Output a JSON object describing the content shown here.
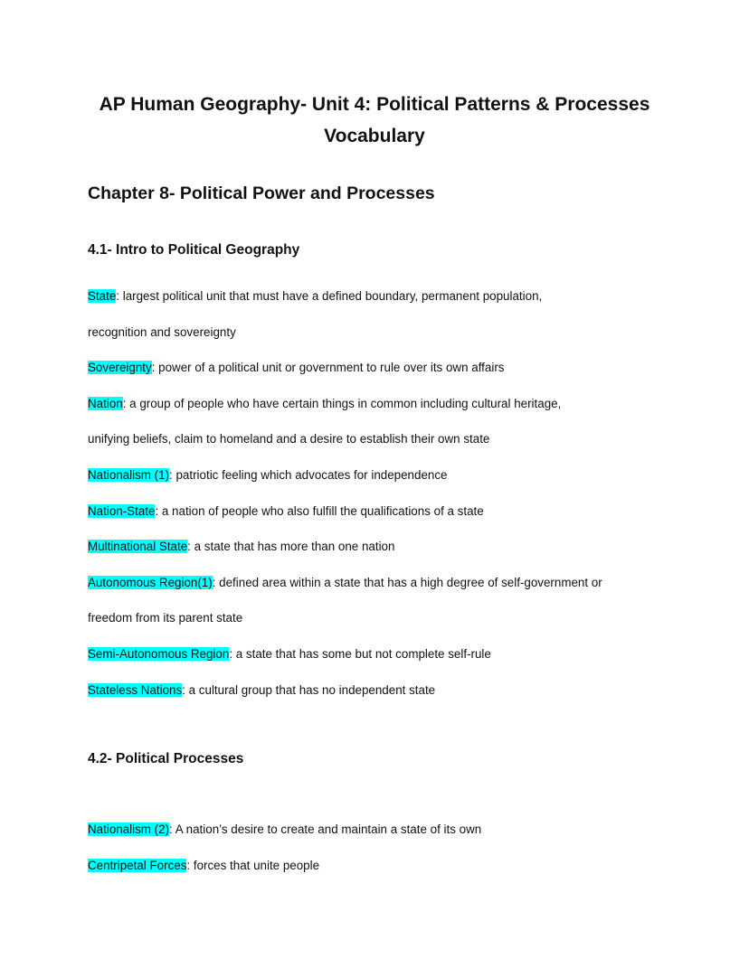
{
  "title": {
    "line1": "AP Human Geography- Unit 4: Political Patterns & Processes",
    "line2": "Vocabulary"
  },
  "chapter": "Chapter 8- Political Power and Processes",
  "highlight_color": "#00ffff",
  "sections": [
    {
      "heading": "4.1- Intro to Political Geography",
      "entries": [
        {
          "term": "State",
          "def": ": largest political unit that must have a defined boundary, permanent population,",
          "cont": "recognition and sovereignty"
        },
        {
          "term": "Sovereignty",
          "def": ": power of a political unit or government to rule over its own affairs"
        },
        {
          "term": "Nation",
          "def": ": a group of people who have certain things in common including cultural heritage,",
          "cont": "unifying beliefs, claim to homeland and a desire to establish their own state"
        },
        {
          "term": "Nationalism (1)",
          "def": ": patriotic feeling which advocates for independence"
        },
        {
          "term": "Nation-State",
          "def": ": a nation of people who also fulfill the qualifications of a state"
        },
        {
          "term": "Multinational State",
          "def": ": a state that has more than one nation"
        },
        {
          "term": "Autonomous Region(1)",
          "def": ": defined area within a state that has a high degree of self-government or",
          "cont": "freedom from its parent state"
        },
        {
          "term": "Semi-Autonomous Region",
          "def": ": a state that has some but not complete self-rule"
        },
        {
          "term": "Stateless Nations",
          "def": ": a cultural group that has no independent state"
        }
      ]
    },
    {
      "heading": "4.2- Political Processes",
      "entries": [
        {
          "term": "Nationalism (2)",
          "def": ": A nation’s desire to create and maintain a state of its own"
        },
        {
          "term": "Centripetal Forces",
          "def": ": forces that unite people"
        }
      ]
    }
  ]
}
